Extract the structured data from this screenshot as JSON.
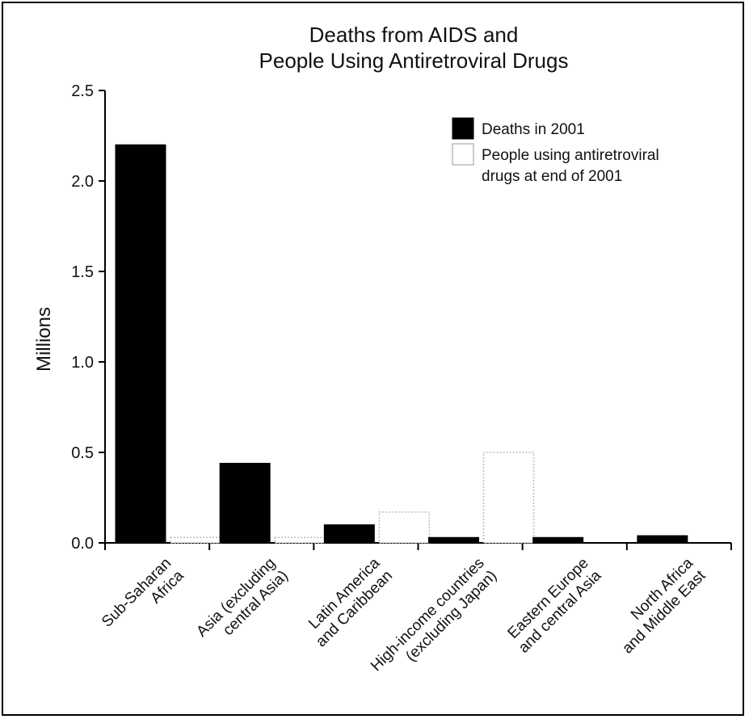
{
  "chart_data": {
    "type": "bar",
    "title": [
      "Deaths from AIDS and",
      "People Using Antiretroviral Drugs"
    ],
    "ylabel": "Millions",
    "xlabel": "",
    "ylim": [
      0,
      2.5
    ],
    "yticks": [
      "0.0",
      "0.5",
      "1.0",
      "1.5",
      "2.0",
      "2.5"
    ],
    "categories": [
      [
        "Sub-Saharan",
        "Africa"
      ],
      [
        "Asia (excluding",
        "central Asia)"
      ],
      [
        "Latin America",
        "and Caribbean"
      ],
      [
        "High-income countries",
        "(excluding Japan)"
      ],
      [
        "Eastern Europe",
        "and central Asia"
      ],
      [
        "North Africa",
        "and Middle East"
      ]
    ],
    "series": [
      {
        "name": "Deaths in 2001",
        "color": "#000000",
        "values": [
          2.2,
          0.44,
          0.1,
          0.03,
          0.03,
          0.04
        ]
      },
      {
        "name": [
          "People using antiretroviral",
          "drugs at end of 2001"
        ],
        "color": "#ffffff",
        "values": [
          0.03,
          0.03,
          0.17,
          0.5,
          0.0,
          0.0
        ]
      }
    ],
    "legend_position": "top-right",
    "grid": false
  }
}
